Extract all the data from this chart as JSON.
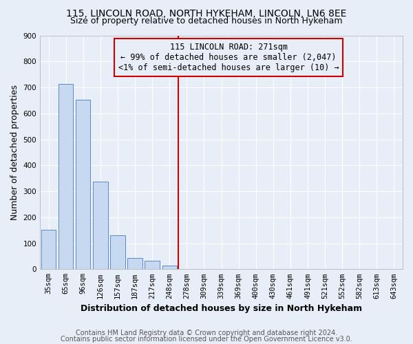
{
  "title": "115, LINCOLN ROAD, NORTH HYKEHAM, LINCOLN, LN6 8EE",
  "subtitle": "Size of property relative to detached houses in North Hykeham",
  "xlabel": "Distribution of detached houses by size in North Hykeham",
  "ylabel": "Number of detached properties",
  "footnote1": "Contains HM Land Registry data © Crown copyright and database right 2024.",
  "footnote2": "Contains public sector information licensed under the Open Government Licence v3.0.",
  "bar_labels": [
    "35sqm",
    "65sqm",
    "96sqm",
    "126sqm",
    "157sqm",
    "187sqm",
    "217sqm",
    "248sqm",
    "278sqm",
    "309sqm",
    "339sqm",
    "369sqm",
    "400sqm",
    "430sqm",
    "461sqm",
    "491sqm",
    "521sqm",
    "552sqm",
    "582sqm",
    "613sqm",
    "643sqm"
  ],
  "bar_values": [
    153,
    712,
    652,
    338,
    130,
    43,
    32,
    15,
    0,
    0,
    0,
    0,
    0,
    0,
    0,
    0,
    0,
    0,
    0,
    0,
    0
  ],
  "bar_color": "#c6d9f1",
  "bar_edge_color": "#5b8ac5",
  "annotation_text_line1": "115 LINCOLN ROAD: 271sqm",
  "annotation_text_line2": "← 99% of detached houses are smaller (2,047)",
  "annotation_text_line3": "<1% of semi-detached houses are larger (10) →",
  "annotation_box_color": "#cc0000",
  "vline_color": "#cc0000",
  "vline_x": 8,
  "ylim": [
    0,
    900
  ],
  "yticks": [
    0,
    100,
    200,
    300,
    400,
    500,
    600,
    700,
    800,
    900
  ],
  "background_color": "#e8eef7",
  "grid_color": "#ffffff",
  "title_fontsize": 10,
  "subtitle_fontsize": 9,
  "axis_label_fontsize": 9,
  "tick_fontsize": 7.5,
  "annotation_fontsize": 8.5,
  "footnote_fontsize": 7
}
